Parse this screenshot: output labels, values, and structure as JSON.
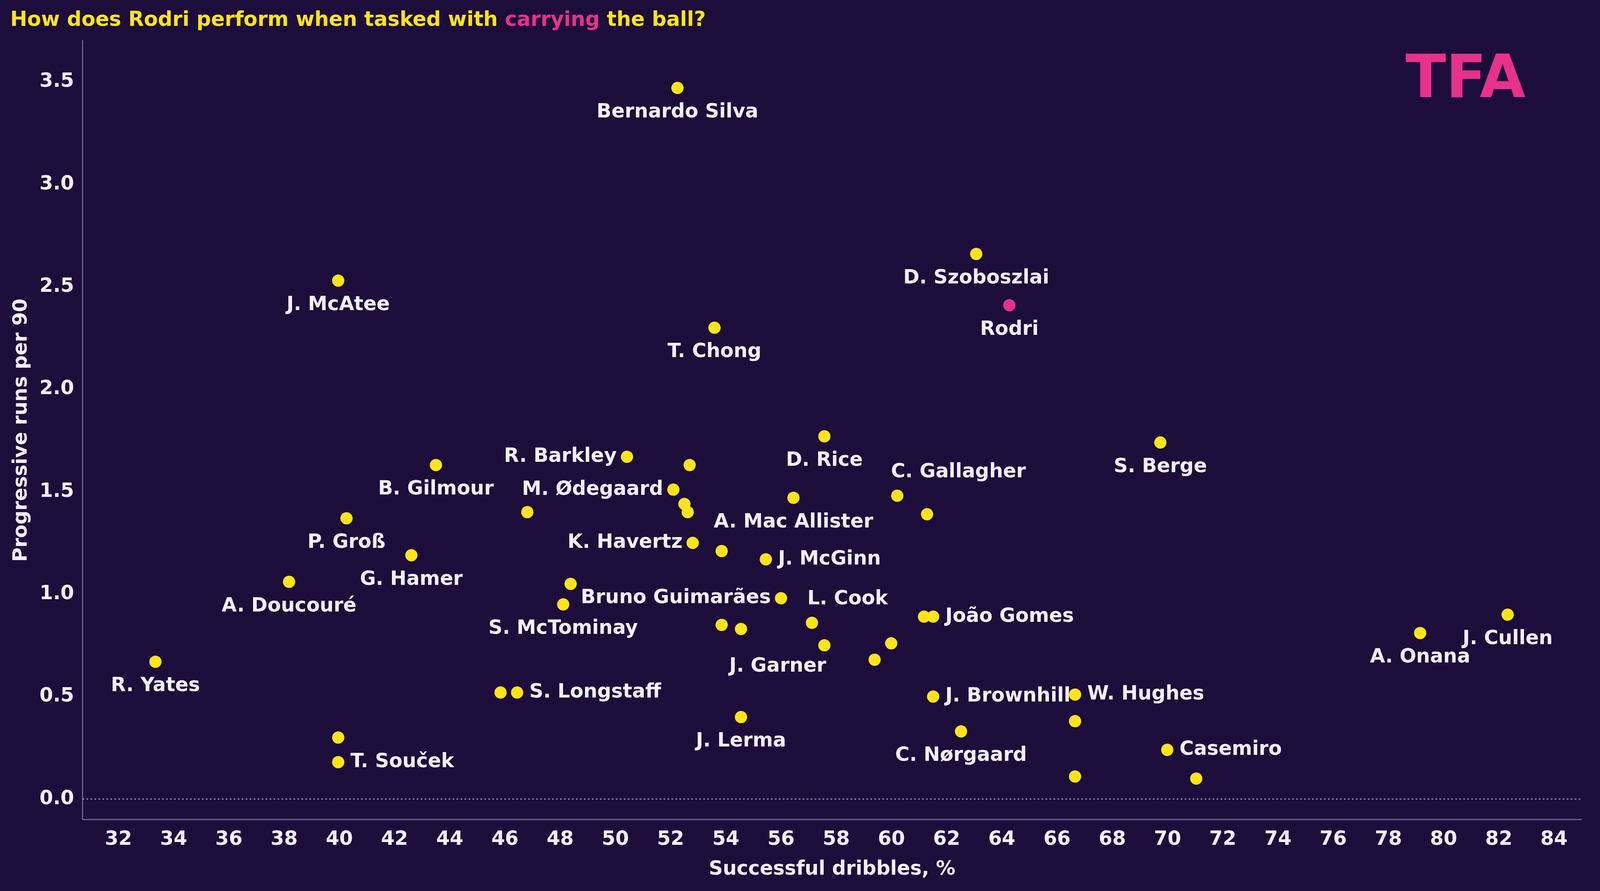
{
  "chart_data": {
    "type": "scatter",
    "title": "How does Rodri perform when tasked with carrying the ball?",
    "title_highlight": "carrying",
    "annotations": [
      {
        "text": "TFA"
      }
    ],
    "x_label": "Successful dribbles, %",
    "y_label": "Progressive runs per 90",
    "xlim": [
      30.7,
      85
    ],
    "ylim": [
      -0.1,
      3.7
    ],
    "xticks": [
      32,
      34,
      36,
      38,
      40,
      42,
      44,
      46,
      48,
      50,
      52,
      54,
      56,
      58,
      60,
      62,
      64,
      66,
      68,
      70,
      72,
      74,
      76,
      78,
      80,
      82,
      84
    ],
    "yticks": [
      {
        "value": 0,
        "label": "0.0"
      },
      0.5,
      {
        "value": 1,
        "label": "1.0"
      },
      1.5,
      {
        "value": 2,
        "label": "2.0"
      },
      2.5,
      {
        "value": 3,
        "label": "3.0"
      },
      3.5
    ],
    "grid": false,
    "marker": "circle",
    "labels": [
      "Bernardo Silva",
      "D. Szoboszlai",
      "Rodri",
      "J. McAtee",
      "T. Chong",
      "D. Rice",
      "S. Berge",
      "R. Barkley",
      null,
      "B. Gilmour",
      "M. Ødegaard",
      null,
      null,
      null,
      "A. Mac Allister",
      "C. Gallagher",
      null,
      "P. Groß",
      "G. Hamer",
      "K. Havertz",
      null,
      "J. McGinn",
      "A. Doucouré",
      null,
      "S. McTominay",
      "Bruno Guimarães",
      "L. Cook",
      null,
      null,
      null,
      null,
      "J. Garner",
      null,
      "João Gomes",
      "J. Brownhill",
      "W. Hughes",
      null,
      null,
      "C. Nørgaard",
      "Casemiro",
      null,
      "A. Onana",
      "J. Cullen",
      "R. Yates",
      "T. Souček",
      null,
      "S. Longstaff",
      null,
      "J. Lerma"
    ],
    "x": [
      52.25,
      63.07,
      64.27,
      39.96,
      53.59,
      57.57,
      69.74,
      50.42,
      52.69,
      43.5,
      52.1,
      52.5,
      52.62,
      46.81,
      56.45,
      60.21,
      61.29,
      40.26,
      42.61,
      52.8,
      53.85,
      55.45,
      38.18,
      48.38,
      48.11,
      56.0,
      57.12,
      59.99,
      59.39,
      57.57,
      53.85,
      54.55,
      61.18,
      61.51,
      61.51,
      66.65,
      66.65,
      66.65,
      62.52,
      69.99,
      71.04,
      79.15,
      82.32,
      33.34,
      39.96,
      39.96,
      46.44,
      45.84,
      54.55
    ],
    "values": [
      3.47,
      2.66,
      2.41,
      2.53,
      2.3,
      1.77,
      1.74,
      1.67,
      1.63,
      1.63,
      1.51,
      1.44,
      1.4,
      1.4,
      1.47,
      1.48,
      1.39,
      1.37,
      1.19,
      1.25,
      1.21,
      1.17,
      1.06,
      1.05,
      0.95,
      0.98,
      0.86,
      0.76,
      0.68,
      0.75,
      0.85,
      0.83,
      0.89,
      0.89,
      0.5,
      0.51,
      0.38,
      0.11,
      0.33,
      0.24,
      0.1,
      0.81,
      0.9,
      0.67,
      0.18,
      0.3,
      0.52,
      0.52,
      0.4
    ],
    "colors": [
      "#ffe41a",
      "#ffe41a",
      "#e8318a",
      "#ffe41a",
      "#ffe41a",
      "#ffe41a",
      "#ffe41a",
      "#ffe41a",
      "#ffe41a",
      "#ffe41a",
      "#ffe41a",
      "#ffe41a",
      "#ffe41a",
      "#ffe41a",
      "#ffe41a",
      "#ffe41a",
      "#ffe41a",
      "#ffe41a",
      "#ffe41a",
      "#ffe41a",
      "#ffe41a",
      "#ffe41a",
      "#ffe41a",
      "#ffe41a",
      "#ffe41a",
      "#ffe41a",
      "#ffe41a",
      "#ffe41a",
      "#ffe41a",
      "#ffe41a",
      "#ffe41a",
      "#ffe41a",
      "#ffe41a",
      "#ffe41a",
      "#ffe41a",
      "#ffe41a",
      "#ffe41a",
      "#ffe41a",
      "#ffe41a",
      "#ffe41a",
      "#ffe41a",
      "#ffe41a",
      "#ffe41a",
      "#ffe41a",
      "#ffe41a",
      "#ffe41a",
      "#ffe41a",
      "#ffe41a",
      "#ffe41a"
    ],
    "title_color": "#ffe41a",
    "highlight_color": "#e8318a"
  }
}
